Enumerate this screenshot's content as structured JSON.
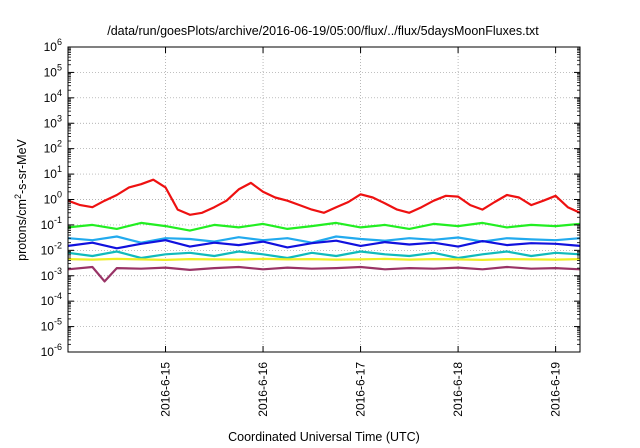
{
  "chart_data": {
    "type": "line",
    "title": "/data/run/goesPlots/archive/2016-06-19/05:00/flux/../flux/5daysMoonFluxes.txt",
    "xlabel": "Coordinated Universal Time (UTC)",
    "ylabel": {
      "prefix": "protons/cm",
      "sup": "2",
      "suffix": "-s-sr-MeV"
    },
    "xlim": [
      "2016-06-14T00:00",
      "2016-06-19T06:00"
    ],
    "ylim": [
      1e-06,
      1000000.0
    ],
    "yscale": "log",
    "grid": true,
    "x_ticks": [
      "2016-6-15",
      "2016-6-16",
      "2016-6-17",
      "2016-6-18",
      "2016-6-19"
    ],
    "y_ticks": [
      {
        "base": "10",
        "exp": "6"
      },
      {
        "base": "10",
        "exp": "5"
      },
      {
        "base": "10",
        "exp": "4"
      },
      {
        "base": "10",
        "exp": "3"
      },
      {
        "base": "10",
        "exp": "2"
      },
      {
        "base": "10",
        "exp": "1"
      },
      {
        "base": "10",
        "exp": "0"
      },
      {
        "base": "10",
        "exp": "-1"
      },
      {
        "base": "10",
        "exp": "-2"
      },
      {
        "base": "10",
        "exp": "-3"
      },
      {
        "base": "10",
        "exp": "-4"
      },
      {
        "base": "10",
        "exp": "-5"
      },
      {
        "base": "10",
        "exp": "-6"
      }
    ],
    "series": [
      {
        "color": "#ee1111",
        "x": [
          "2016-06-14T00:00",
          "2016-06-14T03:00",
          "2016-06-14T06:00",
          "2016-06-14T09:00",
          "2016-06-14T12:00",
          "2016-06-14T15:00",
          "2016-06-14T18:00",
          "2016-06-14T21:00",
          "2016-06-15T00:00",
          "2016-06-15T03:00",
          "2016-06-15T06:00",
          "2016-06-15T09:00",
          "2016-06-15T12:00",
          "2016-06-15T15:00",
          "2016-06-15T18:00",
          "2016-06-15T21:00",
          "2016-06-16T00:00",
          "2016-06-16T03:00",
          "2016-06-16T06:00",
          "2016-06-16T09:00",
          "2016-06-16T12:00",
          "2016-06-16T15:00",
          "2016-06-16T18:00",
          "2016-06-16T21:00",
          "2016-06-17T00:00",
          "2016-06-17T03:00",
          "2016-06-17T06:00",
          "2016-06-17T09:00",
          "2016-06-17T12:00",
          "2016-06-17T15:00",
          "2016-06-17T18:00",
          "2016-06-17T21:00",
          "2016-06-18T00:00",
          "2016-06-18T03:00",
          "2016-06-18T06:00",
          "2016-06-18T09:00",
          "2016-06-18T12:00",
          "2016-06-18T15:00",
          "2016-06-18T18:00",
          "2016-06-18T21:00",
          "2016-06-19T00:00",
          "2016-06-19T03:00",
          "2016-06-19T06:00"
        ],
        "y": [
          0.9,
          0.6,
          0.5,
          0.9,
          1.5,
          3,
          4,
          6,
          3,
          0.4,
          0.25,
          0.3,
          0.5,
          0.9,
          2.5,
          4.5,
          2,
          1.2,
          0.9,
          0.6,
          0.4,
          0.3,
          0.5,
          0.8,
          1.6,
          1.2,
          0.7,
          0.4,
          0.3,
          0.5,
          0.9,
          1.4,
          1.3,
          0.6,
          0.4,
          0.8,
          1.5,
          1.2,
          0.6,
          0.9,
          1.4,
          0.5,
          0.3
        ]
      },
      {
        "color": "#22ee22",
        "x": [
          "2016-06-14T00:00",
          "2016-06-14T06:00",
          "2016-06-14T12:00",
          "2016-06-14T18:00",
          "2016-06-15T00:00",
          "2016-06-15T06:00",
          "2016-06-15T12:00",
          "2016-06-15T18:00",
          "2016-06-16T00:00",
          "2016-06-16T06:00",
          "2016-06-16T12:00",
          "2016-06-16T18:00",
          "2016-06-17T00:00",
          "2016-06-17T06:00",
          "2016-06-17T12:00",
          "2016-06-17T18:00",
          "2016-06-18T00:00",
          "2016-06-18T06:00",
          "2016-06-18T12:00",
          "2016-06-18T18:00",
          "2016-06-19T00:00",
          "2016-06-19T06:00"
        ],
        "y": [
          0.08,
          0.1,
          0.07,
          0.12,
          0.09,
          0.06,
          0.1,
          0.08,
          0.11,
          0.07,
          0.09,
          0.12,
          0.08,
          0.1,
          0.07,
          0.11,
          0.09,
          0.12,
          0.08,
          0.1,
          0.09,
          0.11
        ]
      },
      {
        "color": "#22aaee",
        "x": [
          "2016-06-14T00:00",
          "2016-06-14T06:00",
          "2016-06-14T12:00",
          "2016-06-14T18:00",
          "2016-06-15T00:00",
          "2016-06-15T06:00",
          "2016-06-15T12:00",
          "2016-06-15T18:00",
          "2016-06-16T00:00",
          "2016-06-16T06:00",
          "2016-06-16T12:00",
          "2016-06-16T18:00",
          "2016-06-17T00:00",
          "2016-06-17T06:00",
          "2016-06-17T12:00",
          "2016-06-17T18:00",
          "2016-06-18T00:00",
          "2016-06-18T06:00",
          "2016-06-18T12:00",
          "2016-06-18T18:00",
          "2016-06-19T00:00",
          "2016-06-19T06:00"
        ],
        "y": [
          0.03,
          0.025,
          0.035,
          0.02,
          0.03,
          0.028,
          0.022,
          0.033,
          0.025,
          0.03,
          0.02,
          0.035,
          0.028,
          0.024,
          0.03,
          0.026,
          0.032,
          0.022,
          0.03,
          0.027,
          0.025,
          0.03
        ]
      },
      {
        "color": "#1111dd",
        "x": [
          "2016-06-14T00:00",
          "2016-06-14T06:00",
          "2016-06-14T12:00",
          "2016-06-14T18:00",
          "2016-06-15T00:00",
          "2016-06-15T06:00",
          "2016-06-15T12:00",
          "2016-06-15T18:00",
          "2016-06-16T00:00",
          "2016-06-16T06:00",
          "2016-06-16T12:00",
          "2016-06-16T18:00",
          "2016-06-17T00:00",
          "2016-06-17T06:00",
          "2016-06-17T12:00",
          "2016-06-17T18:00",
          "2016-06-18T00:00",
          "2016-06-18T06:00",
          "2016-06-18T12:00",
          "2016-06-18T18:00",
          "2016-06-19T00:00",
          "2016-06-19T06:00"
        ],
        "y": [
          0.015,
          0.02,
          0.012,
          0.018,
          0.025,
          0.014,
          0.02,
          0.016,
          0.022,
          0.013,
          0.019,
          0.024,
          0.015,
          0.021,
          0.017,
          0.02,
          0.014,
          0.023,
          0.016,
          0.019,
          0.018,
          0.015
        ]
      },
      {
        "color": "#11bbbb",
        "x": [
          "2016-06-14T00:00",
          "2016-06-14T06:00",
          "2016-06-14T12:00",
          "2016-06-14T18:00",
          "2016-06-15T00:00",
          "2016-06-15T06:00",
          "2016-06-15T12:00",
          "2016-06-15T18:00",
          "2016-06-16T00:00",
          "2016-06-16T06:00",
          "2016-06-16T12:00",
          "2016-06-16T18:00",
          "2016-06-17T00:00",
          "2016-06-17T06:00",
          "2016-06-17T12:00",
          "2016-06-17T18:00",
          "2016-06-18T00:00",
          "2016-06-18T06:00",
          "2016-06-18T12:00",
          "2016-06-18T18:00",
          "2016-06-19T00:00",
          "2016-06-19T06:00"
        ],
        "y": [
          0.008,
          0.006,
          0.009,
          0.005,
          0.007,
          0.008,
          0.006,
          0.009,
          0.007,
          0.005,
          0.008,
          0.006,
          0.009,
          0.007,
          0.006,
          0.008,
          0.005,
          0.007,
          0.009,
          0.006,
          0.008,
          0.007
        ]
      },
      {
        "color": "#eeee22",
        "x": [
          "2016-06-14T00:00",
          "2016-06-14T06:00",
          "2016-06-14T12:00",
          "2016-06-14T18:00",
          "2016-06-15T00:00",
          "2016-06-15T06:00",
          "2016-06-15T12:00",
          "2016-06-15T18:00",
          "2016-06-16T00:00",
          "2016-06-16T06:00",
          "2016-06-16T12:00",
          "2016-06-16T18:00",
          "2016-06-17T00:00",
          "2016-06-17T06:00",
          "2016-06-17T12:00",
          "2016-06-17T18:00",
          "2016-06-18T00:00",
          "2016-06-18T06:00",
          "2016-06-18T12:00",
          "2016-06-18T18:00",
          "2016-06-19T00:00",
          "2016-06-19T06:00"
        ],
        "y": [
          0.0045,
          0.0043,
          0.0046,
          0.0044,
          0.0042,
          0.0045,
          0.0044,
          0.0043,
          0.0046,
          0.0044,
          0.0045,
          0.0043,
          0.0044,
          0.0046,
          0.0043,
          0.0045,
          0.0044,
          0.0042,
          0.0045,
          0.0044,
          0.0043,
          0.0045
        ]
      },
      {
        "color": "#993366",
        "x": [
          "2016-06-14T00:00",
          "2016-06-14T06:00",
          "2016-06-14T09:00",
          "2016-06-14T12:00",
          "2016-06-14T18:00",
          "2016-06-15T00:00",
          "2016-06-15T06:00",
          "2016-06-15T12:00",
          "2016-06-15T18:00",
          "2016-06-16T00:00",
          "2016-06-16T06:00",
          "2016-06-16T12:00",
          "2016-06-16T18:00",
          "2016-06-17T00:00",
          "2016-06-17T06:00",
          "2016-06-17T12:00",
          "2016-06-17T18:00",
          "2016-06-18T00:00",
          "2016-06-18T06:00",
          "2016-06-18T12:00",
          "2016-06-18T18:00",
          "2016-06-19T00:00",
          "2016-06-19T06:00"
        ],
        "y": [
          0.0018,
          0.0022,
          0.0006,
          0.002,
          0.0019,
          0.0021,
          0.0017,
          0.002,
          0.0022,
          0.0018,
          0.0021,
          0.0019,
          0.002,
          0.0022,
          0.0018,
          0.002,
          0.0019,
          0.0021,
          0.0018,
          0.0022,
          0.0019,
          0.002,
          0.0018
        ]
      }
    ]
  }
}
